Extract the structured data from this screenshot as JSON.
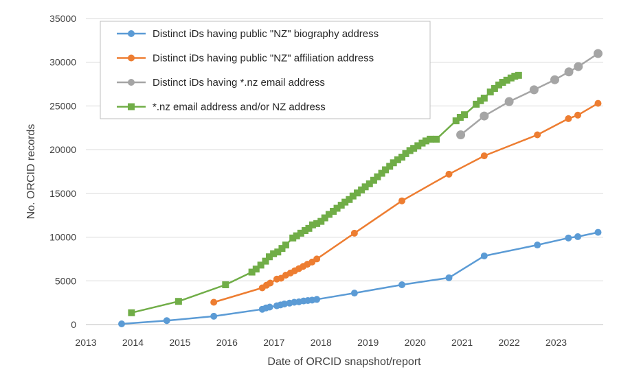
{
  "chart_data": {
    "type": "line",
    "xlabel": "Date of ORCID snapshot/report",
    "ylabel": "No. ORCID records",
    "xlim": [
      2013,
      2024
    ],
    "ylim": [
      0,
      35000
    ],
    "x_ticks": [
      "2013",
      "2014",
      "2015",
      "2016",
      "2017",
      "2018",
      "2019",
      "2020",
      "2021",
      "2022",
      "2023"
    ],
    "y_ticks": [
      "0",
      "5000",
      "10000",
      "15000",
      "20000",
      "25000",
      "30000",
      "35000"
    ],
    "grid": "horizontal",
    "legend_position": "top-left",
    "series": [
      {
        "name": "Distinct iDs having public \"NZ\" biography address",
        "color": "#5B9BD5",
        "marker": "circle",
        "points": [
          [
            2013.76,
            80
          ],
          [
            2014.72,
            450
          ],
          [
            2015.72,
            950
          ],
          [
            2016.75,
            1750
          ],
          [
            2016.83,
            1900
          ],
          [
            2016.91,
            2000
          ],
          [
            2017.06,
            2150
          ],
          [
            2017.14,
            2250
          ],
          [
            2017.22,
            2350
          ],
          [
            2017.33,
            2450
          ],
          [
            2017.43,
            2550
          ],
          [
            2017.53,
            2600
          ],
          [
            2017.63,
            2700
          ],
          [
            2017.72,
            2750
          ],
          [
            2017.81,
            2800
          ],
          [
            2017.91,
            2880
          ],
          [
            2018.71,
            3600
          ],
          [
            2019.72,
            4550
          ],
          [
            2020.72,
            5350
          ],
          [
            2021.47,
            7850
          ],
          [
            2022.6,
            9100
          ],
          [
            2023.26,
            9900
          ],
          [
            2023.46,
            10050
          ],
          [
            2023.89,
            10550
          ]
        ]
      },
      {
        "name": "Distinct iDs having public \"NZ\" affiliation address",
        "color": "#ED7D31",
        "marker": "circle",
        "points": [
          [
            2015.72,
            2550
          ],
          [
            2016.75,
            4200
          ],
          [
            2016.84,
            4500
          ],
          [
            2016.92,
            4750
          ],
          [
            2017.06,
            5200
          ],
          [
            2017.15,
            5300
          ],
          [
            2017.25,
            5650
          ],
          [
            2017.35,
            5900
          ],
          [
            2017.44,
            6150
          ],
          [
            2017.53,
            6400
          ],
          [
            2017.62,
            6650
          ],
          [
            2017.71,
            6900
          ],
          [
            2017.81,
            7150
          ],
          [
            2017.91,
            7500
          ],
          [
            2018.71,
            10450
          ],
          [
            2019.72,
            14150
          ],
          [
            2020.72,
            17200
          ],
          [
            2021.47,
            19300
          ],
          [
            2022.6,
            21700
          ],
          [
            2023.26,
            23550
          ],
          [
            2023.46,
            23950
          ],
          [
            2023.89,
            25300
          ]
        ]
      },
      {
        "name": "Distinct iDs having *.nz email address",
        "color": "#A5A5A5",
        "marker": "circle",
        "points": [
          [
            2020.97,
            21700
          ],
          [
            2021.47,
            23850
          ],
          [
            2022.0,
            25500
          ],
          [
            2022.53,
            26850
          ],
          [
            2022.97,
            28000
          ],
          [
            2023.27,
            28900
          ],
          [
            2023.47,
            29500
          ],
          [
            2023.89,
            31000
          ]
        ]
      },
      {
        "name": "*.nz email address and/or NZ address",
        "color": "#70AD47",
        "marker": "square",
        "points": [
          [
            2013.97,
            1350
          ],
          [
            2014.97,
            2650
          ],
          [
            2015.97,
            4550
          ],
          [
            2016.53,
            6000
          ],
          [
            2016.62,
            6350
          ],
          [
            2016.72,
            6800
          ],
          [
            2016.82,
            7250
          ],
          [
            2016.9,
            7750
          ],
          [
            2016.99,
            8100
          ],
          [
            2017.08,
            8300
          ],
          [
            2017.17,
            8700
          ],
          [
            2017.25,
            9100
          ],
          [
            2017.4,
            9900
          ],
          [
            2017.48,
            10150
          ],
          [
            2017.57,
            10450
          ],
          [
            2017.66,
            10750
          ],
          [
            2017.74,
            11000
          ],
          [
            2017.82,
            11400
          ],
          [
            2017.91,
            11550
          ],
          [
            2018.0,
            11800
          ],
          [
            2018.08,
            12200
          ],
          [
            2018.17,
            12600
          ],
          [
            2018.26,
            12950
          ],
          [
            2018.34,
            13300
          ],
          [
            2018.43,
            13650
          ],
          [
            2018.51,
            14000
          ],
          [
            2018.6,
            14300
          ],
          [
            2018.68,
            14700
          ],
          [
            2018.77,
            15050
          ],
          [
            2018.86,
            15400
          ],
          [
            2018.94,
            15750
          ],
          [
            2019.03,
            16100
          ],
          [
            2019.12,
            16500
          ],
          [
            2019.2,
            16900
          ],
          [
            2019.29,
            17300
          ],
          [
            2019.37,
            17700
          ],
          [
            2019.46,
            18100
          ],
          [
            2019.54,
            18500
          ],
          [
            2019.63,
            18850
          ],
          [
            2019.72,
            19150
          ],
          [
            2019.8,
            19550
          ],
          [
            2019.89,
            19900
          ],
          [
            2019.97,
            20150
          ],
          [
            2020.06,
            20450
          ],
          [
            2020.15,
            20750
          ],
          [
            2020.23,
            21000
          ],
          [
            2020.32,
            21200
          ],
          [
            2020.45,
            21200
          ],
          [
            2020.87,
            23300
          ],
          [
            2020.96,
            23700
          ],
          [
            2021.05,
            24000
          ],
          [
            2021.3,
            25200
          ],
          [
            2021.39,
            25600
          ],
          [
            2021.47,
            25900
          ],
          [
            2021.6,
            26600
          ],
          [
            2021.69,
            27000
          ],
          [
            2021.78,
            27400
          ],
          [
            2021.86,
            27700
          ],
          [
            2021.95,
            27950
          ],
          [
            2022.04,
            28200
          ],
          [
            2022.12,
            28400
          ],
          [
            2022.2,
            28500
          ]
        ]
      }
    ]
  }
}
